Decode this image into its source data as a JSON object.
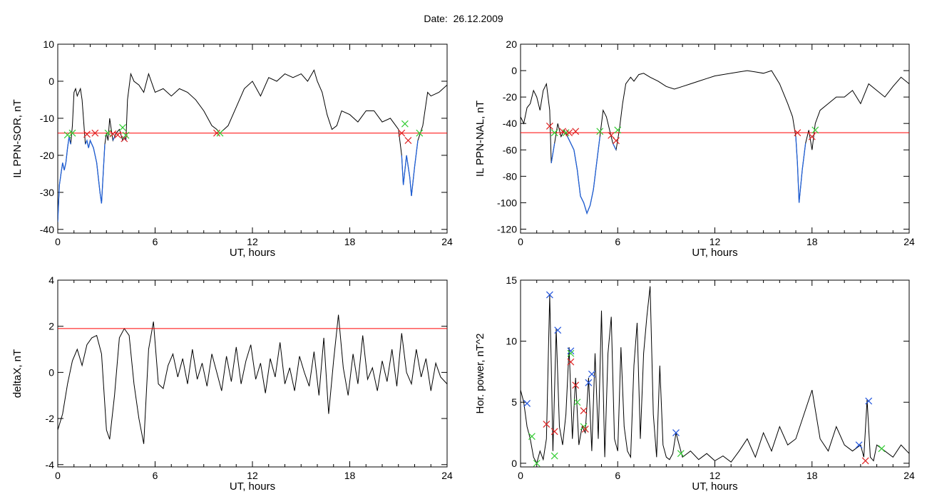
{
  "page": {
    "title": "Date:  26.12.2009"
  },
  "colors": {
    "line": "#000000",
    "threshold": "#ff0000",
    "highlight": "#1f5fd6",
    "marker_red": "#dd2222",
    "marker_green": "#33cc33",
    "marker_blue": "#2255dd"
  },
  "chart_data": [
    {
      "type": "line",
      "ylabel": "IL PPN-SOR, nT",
      "xlabel": "UT, hours",
      "xlim": [
        0,
        24
      ],
      "ylim": [
        -41,
        10
      ],
      "xticks": [
        0,
        6,
        12,
        18,
        24
      ],
      "yticks": [
        -40,
        -30,
        -20,
        -10,
        0,
        10
      ],
      "threshold": -14,
      "x": [
        0.0,
        0.1,
        0.2,
        0.3,
        0.4,
        0.5,
        0.6,
        0.7,
        0.8,
        0.9,
        1.0,
        1.1,
        1.2,
        1.4,
        1.5,
        1.7,
        1.8,
        1.9,
        2.0,
        2.2,
        2.4,
        2.5,
        2.6,
        2.7,
        2.8,
        2.9,
        3.0,
        3.1,
        3.2,
        3.4,
        3.5,
        3.6,
        3.8,
        4.0,
        4.1,
        4.2,
        4.3,
        4.5,
        4.7,
        5.0,
        5.3,
        5.6,
        6.0,
        6.5,
        7.0,
        7.5,
        8.0,
        8.5,
        9.0,
        9.5,
        9.8,
        10.0,
        10.5,
        11.0,
        11.5,
        12.0,
        12.5,
        13.0,
        13.5,
        14.0,
        14.5,
        15.0,
        15.4,
        15.8,
        16.0,
        16.3,
        16.6,
        16.9,
        17.2,
        17.5,
        18.0,
        18.5,
        19.0,
        19.5,
        20.0,
        20.5,
        21.0,
        21.2,
        21.3,
        21.5,
        21.7,
        21.8,
        22.0,
        22.2,
        22.5,
        22.8,
        23.0,
        23.5,
        24.0
      ],
      "y": [
        -38,
        -28,
        -25,
        -22,
        -24,
        -22,
        -18,
        -15,
        -17,
        -12,
        -3,
        -2,
        -4,
        -2,
        -5,
        -17,
        -16,
        -18,
        -16,
        -18,
        -22,
        -26,
        -30,
        -33,
        -25,
        -17,
        -14,
        -16,
        -10,
        -16,
        -15,
        -14,
        -13,
        -16,
        -15,
        -16,
        -5,
        2,
        0,
        -1,
        -3,
        2,
        -3,
        -2,
        -4,
        -2,
        -3,
        -5,
        -8,
        -12,
        -13,
        -14,
        -12,
        -7,
        -2,
        0,
        -4,
        1,
        0,
        2,
        1,
        2,
        0,
        3,
        0,
        -3,
        -9,
        -13,
        -12,
        -8,
        -9,
        -11,
        -8,
        -8,
        -11,
        -10,
        -13,
        -20,
        -28,
        -20,
        -26,
        -31,
        -23,
        -16,
        -12,
        -3,
        -4,
        -3,
        -1
      ],
      "markers": [
        {
          "x": 0.6,
          "y": -14.5,
          "c": "green"
        },
        {
          "x": 0.9,
          "y": -14.0,
          "c": "green"
        },
        {
          "x": 1.8,
          "y": -14.3,
          "c": "red"
        },
        {
          "x": 2.3,
          "y": -14.0,
          "c": "red"
        },
        {
          "x": 3.1,
          "y": -14.0,
          "c": "green"
        },
        {
          "x": 3.4,
          "y": -14.2,
          "c": "red"
        },
        {
          "x": 3.7,
          "y": -14.5,
          "c": "red"
        },
        {
          "x": 4.0,
          "y": -12.5,
          "c": "green"
        },
        {
          "x": 4.1,
          "y": -15.5,
          "c": "red"
        },
        {
          "x": 4.2,
          "y": -14.6,
          "c": "green"
        },
        {
          "x": 9.8,
          "y": -14.0,
          "c": "red"
        },
        {
          "x": 10.0,
          "y": -14.0,
          "c": "green"
        },
        {
          "x": 21.2,
          "y": -14.0,
          "c": "red"
        },
        {
          "x": 21.4,
          "y": -11.5,
          "c": "green"
        },
        {
          "x": 21.6,
          "y": -16.0,
          "c": "red"
        },
        {
          "x": 22.3,
          "y": -14.0,
          "c": "green"
        }
      ]
    },
    {
      "type": "line",
      "ylabel": "IL PPN-NAL, nT",
      "xlabel": "UT, hours",
      "xlim": [
        0,
        24
      ],
      "ylim": [
        -123,
        20
      ],
      "xticks": [
        0,
        6,
        12,
        18,
        24
      ],
      "yticks": [
        -120,
        -100,
        -80,
        -60,
        -40,
        -20,
        0,
        20
      ],
      "threshold": -47,
      "x": [
        0.0,
        0.2,
        0.4,
        0.6,
        0.8,
        1.0,
        1.2,
        1.4,
        1.6,
        1.8,
        1.9,
        2.1,
        2.3,
        2.5,
        2.7,
        2.9,
        3.1,
        3.3,
        3.5,
        3.7,
        3.9,
        4.1,
        4.3,
        4.5,
        4.7,
        4.9,
        5.1,
        5.3,
        5.5,
        5.7,
        5.9,
        6.1,
        6.3,
        6.5,
        6.8,
        7.0,
        7.3,
        7.6,
        8.0,
        8.5,
        9.0,
        9.5,
        10.0,
        10.5,
        11.0,
        11.5,
        12.0,
        12.5,
        13.0,
        13.5,
        14.0,
        14.5,
        15.0,
        15.5,
        16.0,
        16.5,
        16.8,
        17.0,
        17.1,
        17.2,
        17.4,
        17.6,
        17.8,
        18.0,
        18.2,
        18.5,
        19.0,
        19.5,
        20.0,
        20.5,
        21.0,
        21.5,
        22.0,
        22.5,
        23.0,
        23.5,
        24.0
      ],
      "y": [
        -35,
        -40,
        -28,
        -25,
        -15,
        -20,
        -30,
        -15,
        -10,
        -30,
        -70,
        -55,
        -40,
        -50,
        -45,
        -50,
        -55,
        -60,
        -75,
        -95,
        -100,
        -108,
        -102,
        -90,
        -70,
        -50,
        -30,
        -35,
        -45,
        -55,
        -60,
        -45,
        -25,
        -10,
        -5,
        -8,
        -3,
        -2,
        -5,
        -8,
        -12,
        -14,
        -12,
        -10,
        -8,
        -6,
        -4,
        -3,
        -2,
        -1,
        0,
        -1,
        -2,
        0,
        -10,
        -25,
        -35,
        -50,
        -70,
        -100,
        -75,
        -55,
        -45,
        -60,
        -40,
        -30,
        -25,
        -20,
        -20,
        -15,
        -25,
        -10,
        -15,
        -20,
        -12,
        -5,
        -10
      ],
      "highlight_ranges": [
        [
          1.7,
          6.1
        ],
        [
          17.0,
          18.3
        ]
      ],
      "markers": [
        {
          "x": 1.8,
          "y": -42,
          "c": "red"
        },
        {
          "x": 2.1,
          "y": -47,
          "c": "green"
        },
        {
          "x": 2.6,
          "y": -46,
          "c": "red"
        },
        {
          "x": 2.8,
          "y": -47,
          "c": "green"
        },
        {
          "x": 3.0,
          "y": -47,
          "c": "red"
        },
        {
          "x": 3.4,
          "y": -46,
          "c": "red"
        },
        {
          "x": 4.9,
          "y": -46,
          "c": "green"
        },
        {
          "x": 5.6,
          "y": -49,
          "c": "red"
        },
        {
          "x": 5.9,
          "y": -53,
          "c": "red"
        },
        {
          "x": 6.0,
          "y": -45,
          "c": "green"
        },
        {
          "x": 17.1,
          "y": -47,
          "c": "red"
        },
        {
          "x": 18.0,
          "y": -50,
          "c": "red"
        },
        {
          "x": 18.2,
          "y": -45,
          "c": "green"
        }
      ]
    },
    {
      "type": "line",
      "ylabel": "deltaX, nT",
      "xlabel": "UT, hours",
      "xlim": [
        0,
        24
      ],
      "ylim": [
        -4.1,
        4
      ],
      "xticks": [
        0,
        6,
        12,
        18,
        24
      ],
      "yticks": [
        -4,
        -2,
        0,
        2,
        4
      ],
      "threshold": 1.9,
      "x": [
        0.0,
        0.3,
        0.6,
        0.9,
        1.2,
        1.5,
        1.8,
        2.1,
        2.4,
        2.7,
        3.0,
        3.2,
        3.5,
        3.8,
        4.1,
        4.4,
        4.7,
        5.0,
        5.3,
        5.6,
        5.9,
        6.2,
        6.5,
        6.8,
        7.1,
        7.4,
        7.7,
        8.0,
        8.3,
        8.6,
        8.9,
        9.2,
        9.5,
        9.8,
        10.1,
        10.4,
        10.7,
        11.0,
        11.3,
        11.6,
        11.9,
        12.2,
        12.5,
        12.8,
        13.1,
        13.4,
        13.7,
        14.0,
        14.3,
        14.6,
        14.9,
        15.2,
        15.5,
        15.8,
        16.1,
        16.4,
        16.7,
        17.0,
        17.3,
        17.6,
        17.9,
        18.2,
        18.5,
        18.8,
        19.1,
        19.4,
        19.7,
        20.0,
        20.3,
        20.6,
        20.9,
        21.2,
        21.5,
        21.8,
        22.1,
        22.4,
        22.7,
        23.0,
        23.3,
        23.6,
        24.0
      ],
      "y": [
        -2.5,
        -1.8,
        -0.5,
        0.5,
        1.0,
        0.3,
        1.2,
        1.5,
        1.6,
        0.8,
        -2.5,
        -2.9,
        -1.0,
        1.5,
        1.9,
        1.6,
        -0.5,
        -2.0,
        -3.1,
        1.0,
        2.2,
        -0.5,
        -0.7,
        0.3,
        0.8,
        -0.2,
        0.6,
        -0.5,
        1.0,
        -0.3,
        0.4,
        -0.6,
        0.8,
        0.0,
        -0.8,
        0.7,
        -0.4,
        1.1,
        -0.5,
        0.5,
        1.2,
        -0.3,
        0.4,
        -0.9,
        0.6,
        -0.2,
        1.3,
        -0.5,
        0.2,
        -0.8,
        0.7,
        0.0,
        -0.6,
        0.9,
        -1.0,
        1.5,
        -1.8,
        0.5,
        2.5,
        0.2,
        -1.0,
        0.8,
        -0.5,
        1.6,
        -0.3,
        0.2,
        -0.8,
        0.5,
        -0.4,
        1.0,
        -0.6,
        1.7,
        0.0,
        -0.5,
        1.0,
        -0.2,
        0.6,
        -0.8,
        0.4,
        -0.2,
        -0.5
      ]
    },
    {
      "type": "line",
      "ylabel": "Hor. power, nT^2",
      "xlabel": "UT, hours",
      "xlim": [
        0,
        24
      ],
      "ylim": [
        -0.3,
        15
      ],
      "xticks": [
        0,
        6,
        12,
        18,
        24
      ],
      "yticks": [
        0,
        5,
        10,
        15
      ],
      "x": [
        0.0,
        0.2,
        0.4,
        0.6,
        0.8,
        1.0,
        1.2,
        1.4,
        1.6,
        1.8,
        1.9,
        2.0,
        2.2,
        2.4,
        2.6,
        2.8,
        3.0,
        3.2,
        3.4,
        3.6,
        3.8,
        4.0,
        4.2,
        4.4,
        4.6,
        4.8,
        5.0,
        5.2,
        5.4,
        5.6,
        5.8,
        6.0,
        6.2,
        6.4,
        6.6,
        6.8,
        7.0,
        7.2,
        7.4,
        7.6,
        7.8,
        8.0,
        8.2,
        8.4,
        8.6,
        8.8,
        9.0,
        9.2,
        9.4,
        9.6,
        9.8,
        10.0,
        10.5,
        11.0,
        11.5,
        12.0,
        12.5,
        13.0,
        13.5,
        14.0,
        14.5,
        15.0,
        15.5,
        16.0,
        16.5,
        17.0,
        17.5,
        18.0,
        18.5,
        19.0,
        19.5,
        20.0,
        20.5,
        21.0,
        21.2,
        21.4,
        21.6,
        21.8,
        22.0,
        22.5,
        23.0,
        23.5,
        24.0
      ],
      "y": [
        6.0,
        5.0,
        3.0,
        2.0,
        0.5,
        0.0,
        1.0,
        0.3,
        2.0,
        13.8,
        8.0,
        1.0,
        11.0,
        3.0,
        1.5,
        4.0,
        9.5,
        2.0,
        7.0,
        1.5,
        3.0,
        2.5,
        7.0,
        1.0,
        9.0,
        2.0,
        12.5,
        0.5,
        9.0,
        12.0,
        2.0,
        1.0,
        9.5,
        3.0,
        1.0,
        0.5,
        8.0,
        11.5,
        2.0,
        9.0,
        12.0,
        14.5,
        4.0,
        0.5,
        8.0,
        1.5,
        0.5,
        0.3,
        0.8,
        2.5,
        1.5,
        0.5,
        1.0,
        0.3,
        0.8,
        0.2,
        0.6,
        0.1,
        1.0,
        2.0,
        0.5,
        2.5,
        1.0,
        3.0,
        1.5,
        2.0,
        4.0,
        6.0,
        2.0,
        1.0,
        3.0,
        1.5,
        1.0,
        1.5,
        0.5,
        5.2,
        0.5,
        0.2,
        1.5,
        1.0,
        0.5,
        1.5,
        0.8
      ],
      "markers": [
        {
          "x": 0.4,
          "y": 4.9,
          "c": "blue"
        },
        {
          "x": 0.7,
          "y": 2.2,
          "c": "green"
        },
        {
          "x": 1.0,
          "y": 0.0,
          "c": "green"
        },
        {
          "x": 1.6,
          "y": 3.2,
          "c": "red"
        },
        {
          "x": 1.8,
          "y": 13.8,
          "c": "blue"
        },
        {
          "x": 2.1,
          "y": 2.6,
          "c": "red"
        },
        {
          "x": 2.3,
          "y": 10.9,
          "c": "blue"
        },
        {
          "x": 2.1,
          "y": 0.6,
          "c": "green"
        },
        {
          "x": 3.1,
          "y": 9.2,
          "c": "blue"
        },
        {
          "x": 3.1,
          "y": 9.0,
          "c": "green"
        },
        {
          "x": 3.1,
          "y": 8.3,
          "c": "red"
        },
        {
          "x": 3.4,
          "y": 6.4,
          "c": "red"
        },
        {
          "x": 3.5,
          "y": 5.0,
          "c": "green"
        },
        {
          "x": 3.9,
          "y": 4.3,
          "c": "red"
        },
        {
          "x": 3.9,
          "y": 3.0,
          "c": "green"
        },
        {
          "x": 4.0,
          "y": 2.8,
          "c": "red"
        },
        {
          "x": 4.2,
          "y": 6.6,
          "c": "blue"
        },
        {
          "x": 4.4,
          "y": 7.3,
          "c": "blue"
        },
        {
          "x": 9.6,
          "y": 2.5,
          "c": "blue"
        },
        {
          "x": 9.9,
          "y": 0.8,
          "c": "green"
        },
        {
          "x": 20.9,
          "y": 1.5,
          "c": "blue"
        },
        {
          "x": 21.3,
          "y": 0.2,
          "c": "red"
        },
        {
          "x": 21.5,
          "y": 5.1,
          "c": "blue"
        },
        {
          "x": 22.3,
          "y": 1.2,
          "c": "green"
        }
      ]
    }
  ]
}
